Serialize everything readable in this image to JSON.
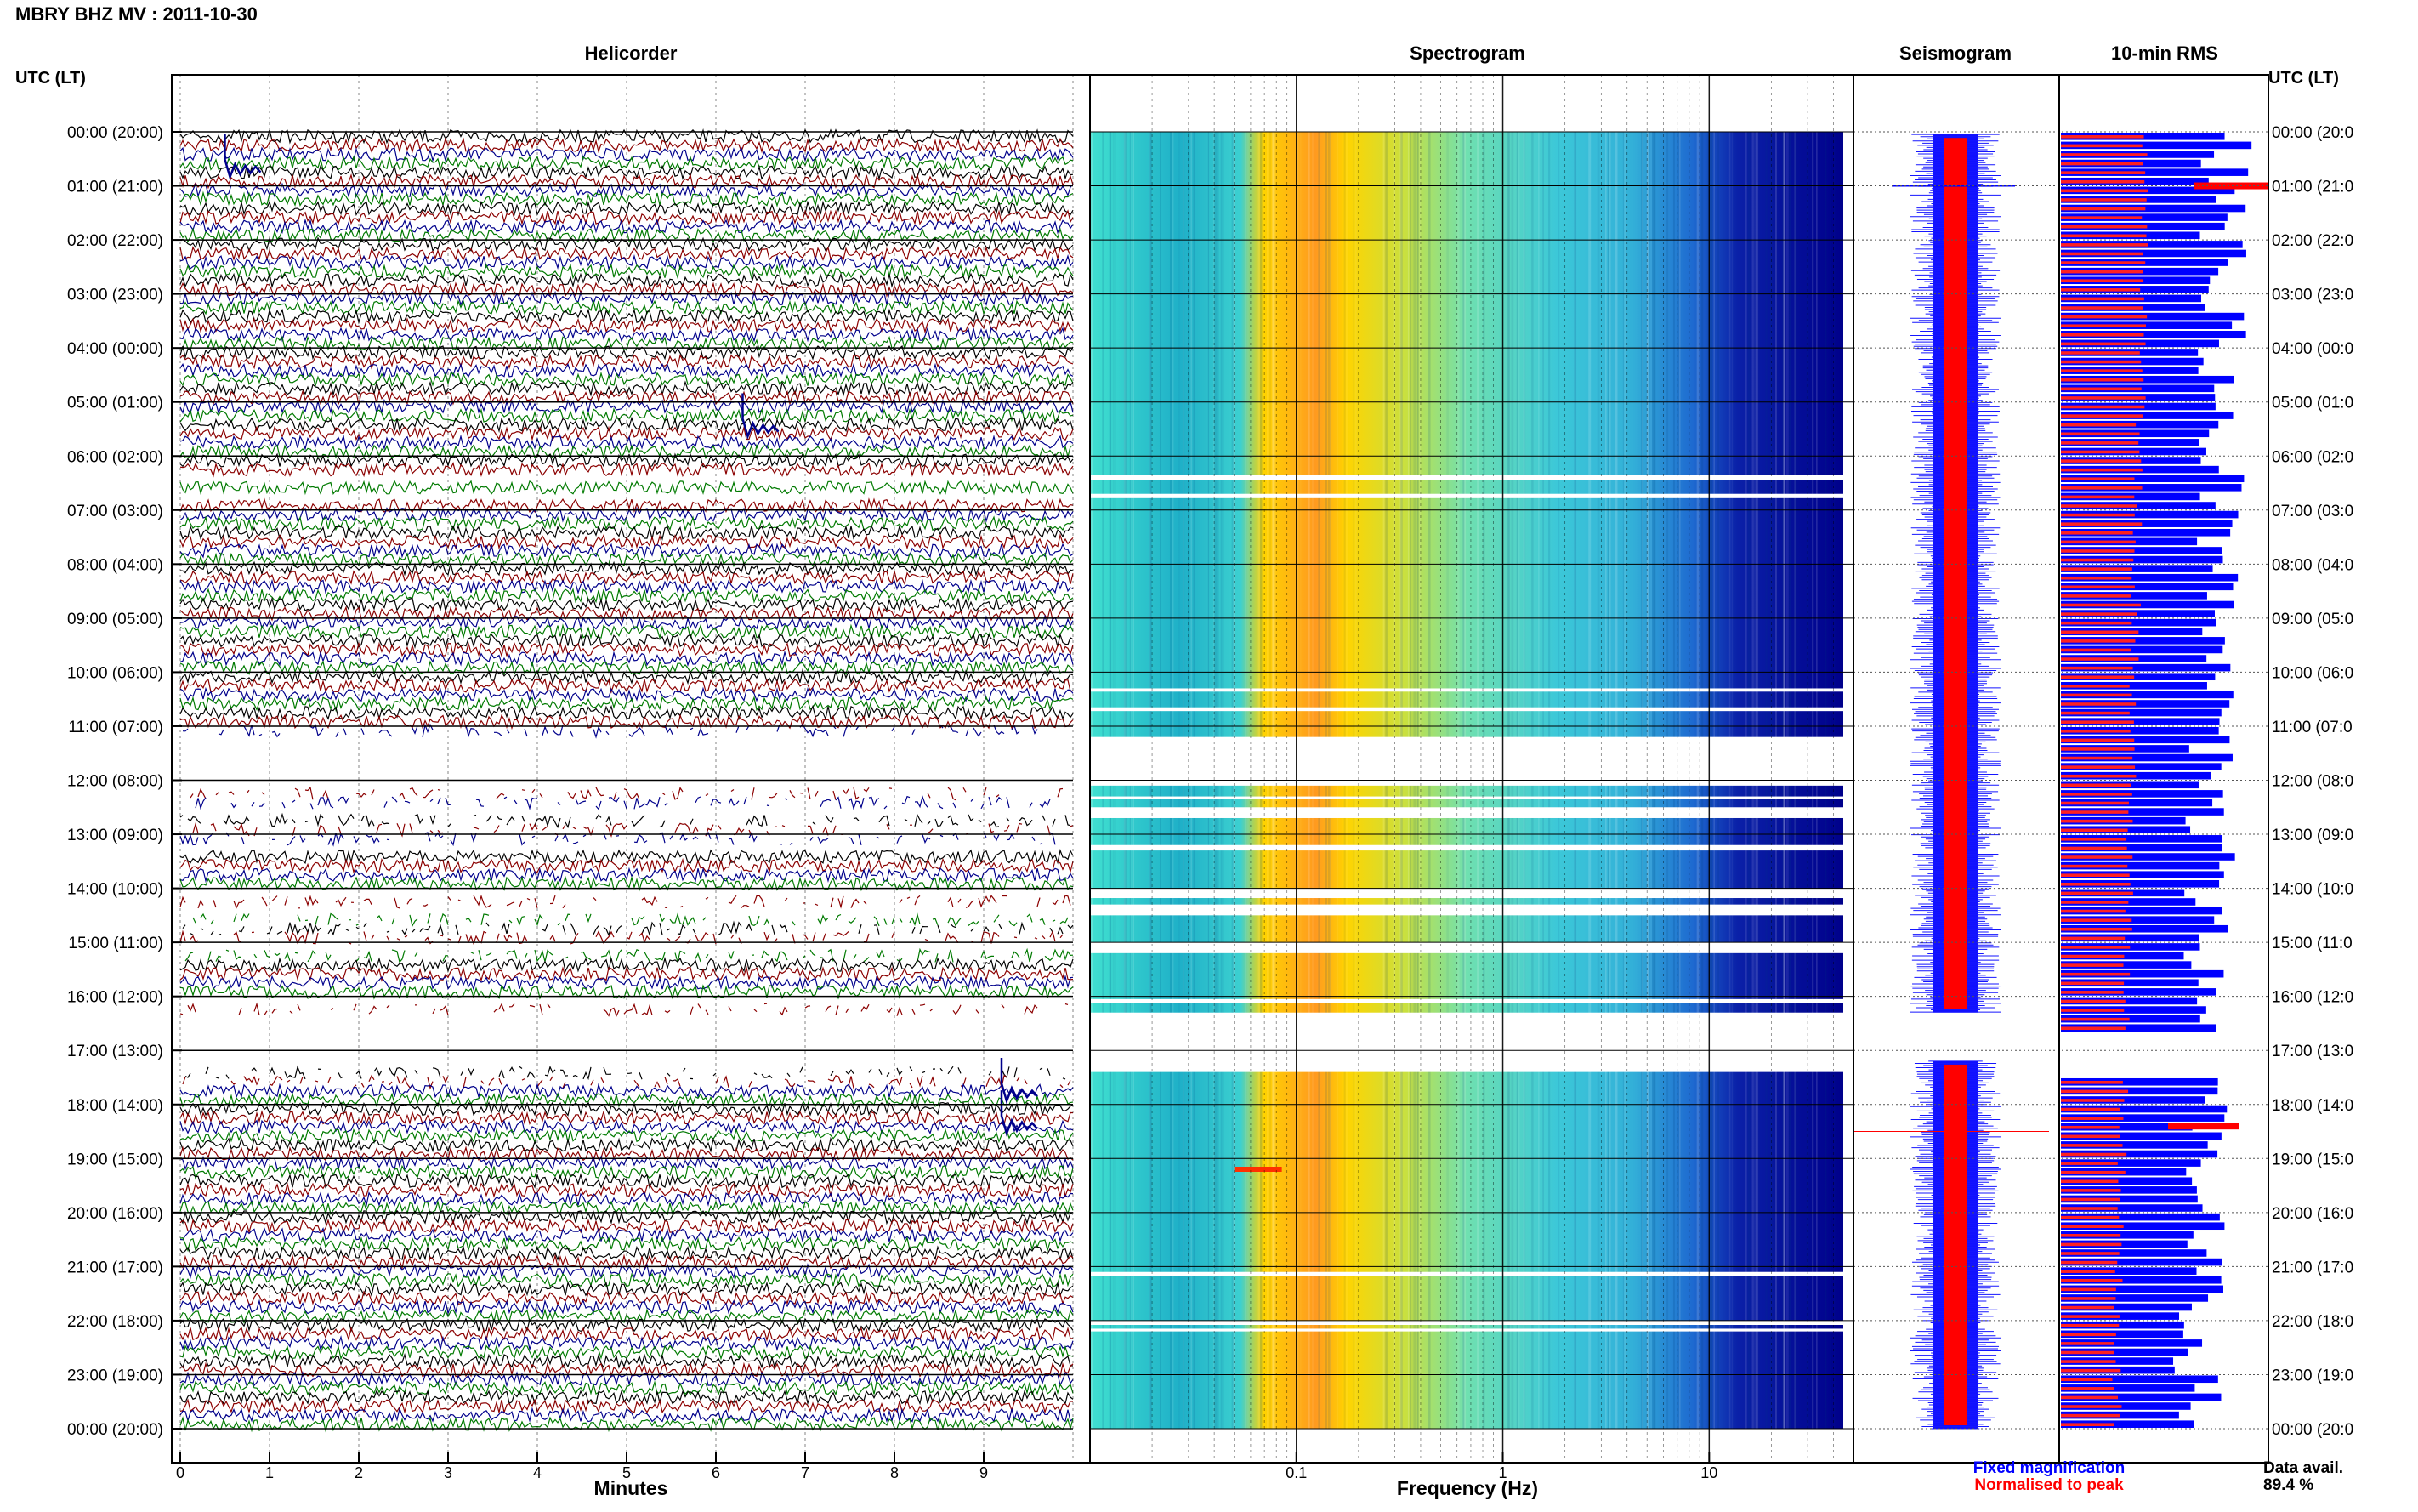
{
  "header": {
    "station_title": "MBRY BHZ MV : 2011-10-30",
    "left_axis_title": "UTC (LT)",
    "right_axis_title": "UTC (LT)"
  },
  "panels": {
    "helicorder": "Helicorder",
    "spectrogram": "Spectrogram",
    "seismogram": "Seismogram",
    "rms": "10-min RMS"
  },
  "footer": {
    "minutes_label": "Minutes",
    "frequency_label": "Frequency (Hz)",
    "legend_fixed": "Fixed magnification",
    "legend_normalised": "Normalised to peak",
    "data_avail_label": "Data avail.",
    "data_avail_value": "89.4 %"
  },
  "colors": {
    "trace_black": "#000000",
    "trace_red": "#8b0000",
    "trace_blue": "#00008b",
    "trace_green": "#007a00",
    "legend_blue": "#0000ff",
    "legend_red": "#ff0000",
    "spectro_low": "#00008b",
    "spectro_high": "#ff8c00"
  },
  "chart_data": {
    "type": "heatmap",
    "time_labels_left": [
      "00:00 (20:00)",
      "01:00 (21:00)",
      "02:00 (22:00)",
      "03:00 (23:00)",
      "04:00 (00:00)",
      "05:00 (01:00)",
      "06:00 (02:00)",
      "07:00 (03:00)",
      "08:00 (04:00)",
      "09:00 (05:00)",
      "10:00 (06:00)",
      "11:00 (07:00)",
      "12:00 (08:00)",
      "13:00 (09:00)",
      "14:00 (10:00)",
      "15:00 (11:00)",
      "16:00 (12:00)",
      "17:00 (13:00)",
      "18:00 (14:00)",
      "19:00 (15:00)",
      "20:00 (16:00)",
      "21:00 (17:00)",
      "22:00 (18:00)",
      "23:00 (19:00)",
      "00:00 (20:00)"
    ],
    "time_labels_right": [
      "00:00 (20:0",
      "01:00 (21:0",
      "02:00 (22:0",
      "03:00 (23:0",
      "04:00 (00:0",
      "05:00 (01:0",
      "06:00 (02:0",
      "07:00 (03:0",
      "08:00 (04:0",
      "09:00 (05:0",
      "10:00 (06:0",
      "11:00 (07:0",
      "12:00 (08:0",
      "13:00 (09:0",
      "14:00 (10:0",
      "15:00 (11:0",
      "16:00 (12:0",
      "17:00 (13:0",
      "18:00 (14:0",
      "19:00 (15:0",
      "20:00 (16:0",
      "21:00 (17:0",
      "22:00 (18:0",
      "23:00 (19:0",
      "00:00 (20:0"
    ],
    "minutes_ticks": [
      0,
      1,
      2,
      3,
      4,
      5,
      6,
      7,
      8,
      9
    ],
    "frequency_ticks": [
      0.1,
      1,
      10
    ],
    "frequency_tick_labels": [
      "0.1",
      "1",
      "10"
    ],
    "frequency_range": [
      0.01,
      50
    ],
    "minutes_range": [
      0,
      10
    ],
    "time_range_hours": [
      0,
      24
    ],
    "gaps_hours": [
      [
        6.35,
        6.45
      ],
      [
        6.7,
        6.78
      ],
      [
        10.3,
        10.36
      ],
      [
        10.65,
        10.72
      ],
      [
        11.2,
        12.1
      ],
      [
        12.3,
        12.35
      ],
      [
        12.5,
        12.7
      ],
      [
        13.2,
        13.3
      ],
      [
        14.0,
        14.18
      ],
      [
        14.3,
        14.5
      ],
      [
        15.0,
        15.2
      ],
      [
        16.05,
        16.12
      ],
      [
        16.3,
        17.4
      ],
      [
        21.1,
        21.18
      ],
      [
        22.0,
        22.08
      ],
      [
        22.15,
        22.2
      ]
    ],
    "events_hours": [
      {
        "hour": 0.7,
        "minute": 0.5
      },
      {
        "hour": 5.5,
        "minute": 6.3
      },
      {
        "hour": 17.8,
        "minute": 9.2
      },
      {
        "hour": 18.4,
        "minute": 9.2
      }
    ]
  }
}
